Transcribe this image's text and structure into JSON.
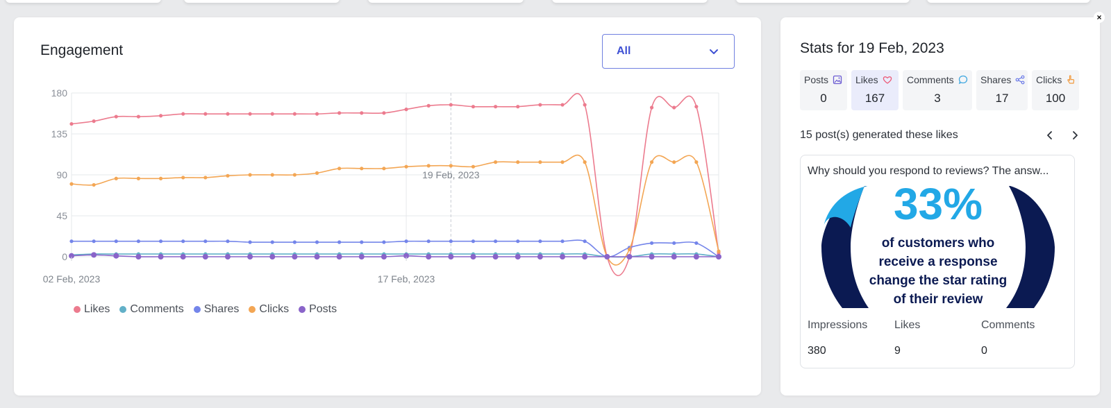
{
  "engagement": {
    "title": "Engagement",
    "filter": {
      "value": "All"
    },
    "hover_date": "19 Feb, 2023"
  },
  "chart_data": {
    "type": "line",
    "title": "",
    "xlabel": "",
    "ylabel": "",
    "ylim": [
      0,
      180
    ],
    "yticks": [
      "0",
      "45",
      "90",
      "135",
      "180"
    ],
    "x_tick_labels": [
      "02 Feb, 2023",
      "17 Feb, 2023"
    ],
    "grid": true,
    "legend_position": "bottom-left",
    "series": [
      {
        "name": "Likes",
        "color": "#ec7b8e",
        "values": [
          146,
          149,
          154,
          154,
          155,
          157,
          157,
          157,
          157,
          157,
          157,
          157,
          158,
          158,
          158,
          162,
          166,
          167,
          165,
          165,
          165,
          167,
          167,
          167,
          0,
          0,
          164,
          164,
          165,
          4
        ]
      },
      {
        "name": "Comments",
        "color": "#62b0c8",
        "values": [
          2,
          3,
          3,
          3,
          3,
          3,
          3,
          3,
          3,
          3,
          3,
          3,
          3,
          3,
          3,
          3,
          3,
          3,
          3,
          3,
          3,
          3,
          3,
          3,
          0,
          0,
          3,
          3,
          3,
          0
        ]
      },
      {
        "name": "Shares",
        "color": "#7485ea",
        "values": [
          17,
          17,
          17,
          17,
          17,
          17,
          17,
          17,
          16,
          16,
          16,
          16,
          16,
          16,
          16,
          17,
          17,
          17,
          17,
          17,
          17,
          17,
          17,
          17,
          0,
          10,
          15,
          15,
          15,
          0
        ]
      },
      {
        "name": "Clicks",
        "color": "#f3a654",
        "values": [
          80,
          79,
          86,
          86,
          86,
          87,
          87,
          89,
          90,
          90,
          90,
          92,
          97,
          97,
          97,
          99,
          100,
          100,
          99,
          104,
          104,
          104,
          104,
          104,
          0,
          8,
          104,
          104,
          104,
          6
        ]
      },
      {
        "name": "Posts",
        "color": "#8a64c9",
        "values": [
          1,
          2,
          1,
          0,
          0,
          0,
          0,
          0,
          0,
          0,
          0,
          0,
          0,
          0,
          0,
          1,
          0,
          0,
          0,
          0,
          0,
          0,
          0,
          0,
          0,
          0,
          0,
          0,
          0,
          0
        ]
      }
    ]
  },
  "stats": {
    "title": "Stats for 19 Feb, 2023",
    "metrics": [
      {
        "label": "Posts",
        "value": "0",
        "icon": "image-icon",
        "color": "#6b5bd2"
      },
      {
        "label": "Likes",
        "value": "167",
        "icon": "heart-icon",
        "color": "#ec5a78"
      },
      {
        "label": "Comments",
        "value": "3",
        "icon": "chat-icon",
        "color": "#3fa7e0"
      },
      {
        "label": "Shares",
        "value": "17",
        "icon": "share-icon",
        "color": "#6b7ae8"
      },
      {
        "label": "Clicks",
        "value": "100",
        "icon": "pointer-hand-icon",
        "color": "#f19a3e"
      }
    ],
    "generated_text": "15 post(s) generated these likes",
    "post": {
      "title": "Why should you respond to reviews? The answ...",
      "image": {
        "big_text": "33%",
        "lines": [
          "of customers who",
          "receive a response",
          "change the star rating",
          "of their review"
        ]
      },
      "stats": [
        {
          "label": "Impressions",
          "value": "380"
        },
        {
          "label": "Likes",
          "value": "9"
        },
        {
          "label": "Comments",
          "value": "0"
        }
      ]
    }
  },
  "close_label": "×"
}
